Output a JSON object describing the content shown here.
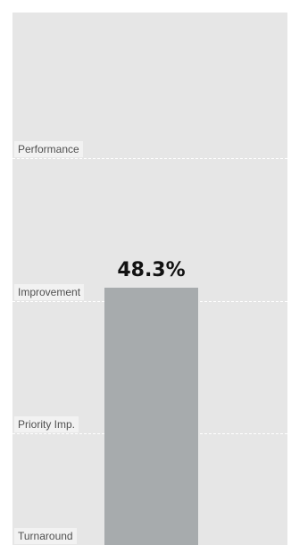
{
  "chart_data": {
    "type": "bar",
    "categories": [
      ""
    ],
    "values": [
      48.3
    ],
    "value_label": "48.3%",
    "ylim": [
      0,
      100
    ],
    "bands": [
      {
        "label": "Performance",
        "threshold": 72.7
      },
      {
        "label": "Improvement",
        "threshold": 45.8
      },
      {
        "label": "Priority Imp.",
        "threshold": 20.9
      },
      {
        "label": "Turnaround",
        "threshold": 0
      }
    ],
    "grid": false,
    "legend": "none"
  },
  "colors": {
    "bar": "#a7abad",
    "background": "#e6e6e6",
    "label_background": "#f2f2f2",
    "band_line": "#ffffff"
  }
}
